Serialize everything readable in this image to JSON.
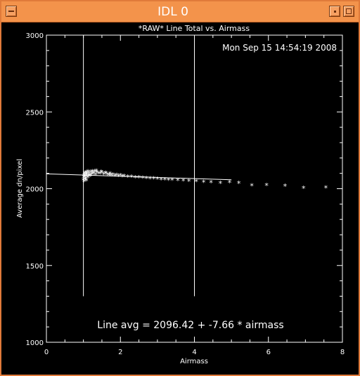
{
  "window": {
    "title": "IDL 0"
  },
  "timestamp": "Mon Sep 15 14:54:19 2008",
  "fit_text": "Line avg = 2096.42 + -7.66 * airmass",
  "colors": {
    "titlebar": "#f3934b",
    "background": "#000000",
    "foreground": "#ffffff"
  },
  "chart_data": {
    "type": "scatter",
    "title": "*RAW* Line Total vs. Airmass",
    "xlabel": "Airmass",
    "ylabel": "Average dn/pixel",
    "xlim": [
      0,
      8
    ],
    "ylim": [
      1000,
      3000
    ],
    "xticks": [
      "0",
      "2",
      "4",
      "6",
      "8"
    ],
    "yticks": [
      "1000",
      "1500",
      "2000",
      "2500",
      "3000"
    ],
    "vertical_lines": [
      1.0,
      4.0
    ],
    "fit_line": {
      "x": [
        0,
        5
      ],
      "y": [
        2096.42,
        2058.12
      ]
    },
    "series": [
      {
        "marker": "asterisk",
        "x": [
          1.0,
          1.01,
          1.02,
          1.03,
          1.04,
          1.05,
          1.06,
          1.07,
          1.08,
          1.09,
          1.1,
          1.12,
          1.14,
          1.16,
          1.18,
          1.2,
          1.22,
          1.25,
          1.28,
          1.3,
          1.33,
          1.36,
          1.4,
          1.45,
          1.5,
          1.55,
          1.6,
          1.65,
          1.7,
          1.75,
          1.8,
          1.85,
          1.9,
          1.95,
          2.0,
          2.05,
          2.1,
          2.2,
          2.3,
          2.4,
          2.5,
          2.6,
          2.7,
          2.8,
          2.9,
          3.0,
          3.1,
          3.2,
          3.3,
          3.4,
          3.55,
          3.7,
          3.85,
          4.05,
          4.25,
          4.45,
          4.7,
          4.95,
          5.2,
          5.55,
          5.95,
          6.45,
          6.95,
          7.55,
          1.02,
          1.05,
          1.08,
          1.12,
          1.18,
          1.25,
          1.35,
          1.48,
          1.6,
          1.72
        ],
        "y": [
          2055,
          2070,
          2085,
          2095,
          2078,
          2100,
          2065,
          2090,
          2105,
          2080,
          2095,
          2110,
          2088,
          2100,
          2085,
          2108,
          2092,
          2100,
          2095,
          2110,
          2090,
          2105,
          2098,
          2095,
          2102,
          2092,
          2098,
          2090,
          2088,
          2085,
          2090,
          2082,
          2086,
          2080,
          2084,
          2078,
          2080,
          2076,
          2075,
          2072,
          2070,
          2068,
          2066,
          2064,
          2063,
          2062,
          2058,
          2058,
          2056,
          2054,
          2052,
          2050,
          2048,
          2045,
          2042,
          2040,
          2035,
          2038,
          2035,
          2018,
          2020,
          2015,
          2002,
          2005,
          2045,
          2060,
          2050,
          2072,
          2080,
          2110,
          2115,
          2108,
          2100,
          2095
        ]
      }
    ]
  }
}
